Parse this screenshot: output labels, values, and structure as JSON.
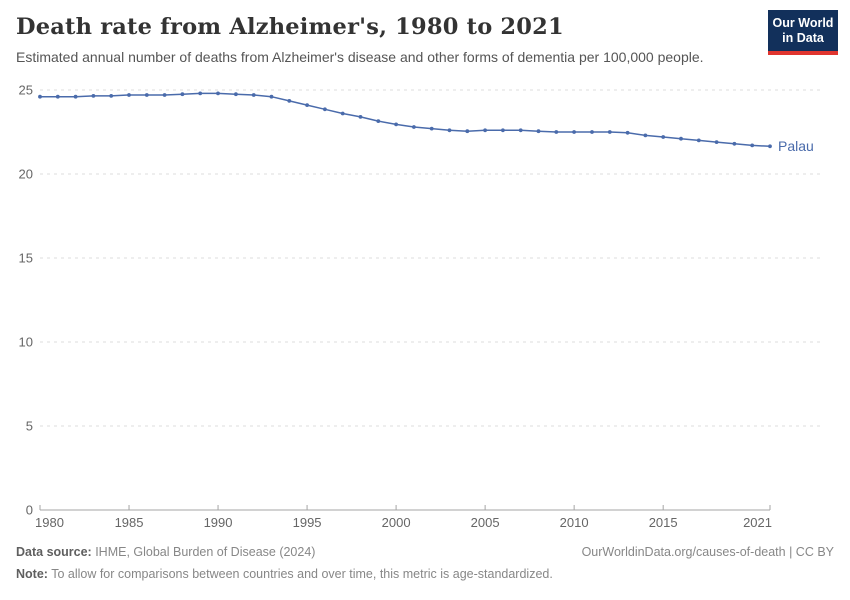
{
  "header": {
    "title": "Death rate from Alzheimer's, 1980 to 2021",
    "subtitle": "Estimated annual number of deaths from Alzheimer's disease and other forms of dementia per 100,000 people.",
    "logo": {
      "line1": "Our World",
      "line2": "in Data",
      "bg_color": "#12305b",
      "accent_color": "#e0352f"
    }
  },
  "chart_data": {
    "type": "line",
    "title": "Death rate from Alzheimer's, 1980 to 2021",
    "xlabel": "",
    "ylabel": "",
    "x": [
      1980,
      1981,
      1982,
      1983,
      1984,
      1985,
      1986,
      1987,
      1988,
      1989,
      1990,
      1991,
      1992,
      1993,
      1994,
      1995,
      1996,
      1997,
      1998,
      1999,
      2000,
      2001,
      2002,
      2003,
      2004,
      2005,
      2006,
      2007,
      2008,
      2009,
      2010,
      2011,
      2012,
      2013,
      2014,
      2015,
      2016,
      2017,
      2018,
      2019,
      2020,
      2021
    ],
    "series": [
      {
        "name": "Palau",
        "color": "#4a6bab",
        "values": [
          24.6,
          24.6,
          24.6,
          24.65,
          24.65,
          24.7,
          24.7,
          24.7,
          24.75,
          24.8,
          24.8,
          24.75,
          24.7,
          24.6,
          24.35,
          24.1,
          23.85,
          23.6,
          23.4,
          23.15,
          22.95,
          22.8,
          22.7,
          22.6,
          22.55,
          22.6,
          22.6,
          22.6,
          22.55,
          22.5,
          22.5,
          22.5,
          22.5,
          22.45,
          22.3,
          22.2,
          22.1,
          22.0,
          21.9,
          21.8,
          21.7,
          21.65
        ]
      }
    ],
    "x_ticks": [
      1980,
      1985,
      1990,
      1995,
      2000,
      2005,
      2010,
      2015,
      2021
    ],
    "y_ticks": [
      0,
      5,
      10,
      15,
      20,
      25
    ],
    "xlim": [
      1980,
      2021
    ],
    "ylim": [
      0,
      25
    ],
    "grid": "horizontal-dashed",
    "legend_position": "end-of-line",
    "end_label": "Palau",
    "axis_color": "#a5a5a5",
    "grid_color": "#dcdcdc",
    "tick_label_color": "#666666"
  },
  "footer": {
    "datasource_label": "Data source:",
    "datasource_value": " IHME, Global Burden of Disease (2024)",
    "link": "OurWorldinData.org/causes-of-death | CC BY",
    "note_label": "Note:",
    "note_value": " To allow for comparisons between countries and over time, this metric is age-standardized."
  }
}
